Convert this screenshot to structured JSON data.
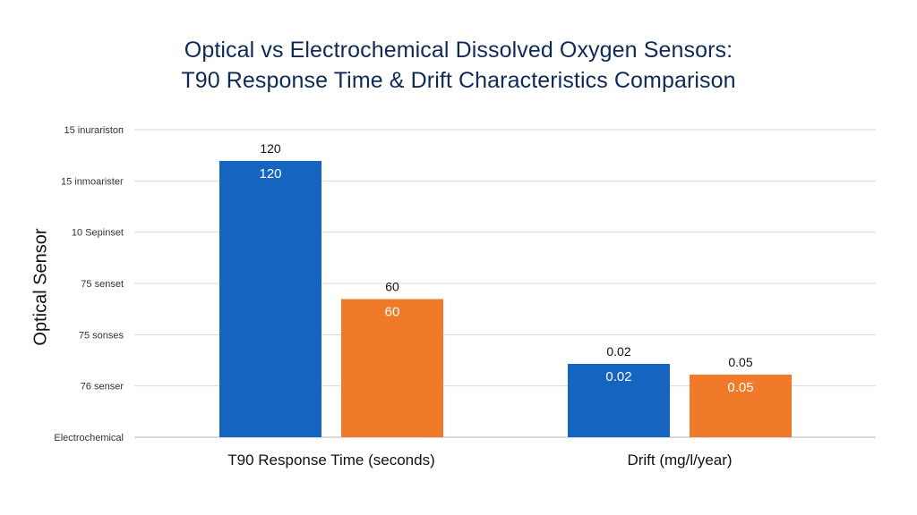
{
  "title_lines": [
    "Optical vs Electrochemical Dissolved Oxygen Sensors:",
    "T90 Response Time & Drift Characteristics Comparison"
  ],
  "colors": {
    "series_a": "#1565c0",
    "series_b": "#f07a2a",
    "grid": "#d9d9d9",
    "title": "#0f2a57"
  },
  "chart_data": {
    "type": "bar",
    "title": "Optical vs Electrochemical Dissolved Oxygen Sensors: T90 Response Time & Drift Characteristics Comparison",
    "ylabel": "Optical Sensor",
    "xlabel": "",
    "y_tick_labels": [
      "15 inuraristoп",
      "15 inmoaristeг",
      "10 Sepinset",
      "75 senset",
      "75 sonses",
      "76 senser",
      "Electrochemical"
    ],
    "grid": true,
    "categories": [
      "T90 Response Time (seconds)",
      "Drift (mg/l/year)"
    ],
    "series": [
      {
        "values": [
          120,
          0.02
        ]
      },
      {
        "values": [
          60,
          0.05
        ]
      }
    ],
    "bar_labels": [
      [
        "120",
        "0.02"
      ],
      [
        "60",
        "0.05"
      ]
    ]
  }
}
